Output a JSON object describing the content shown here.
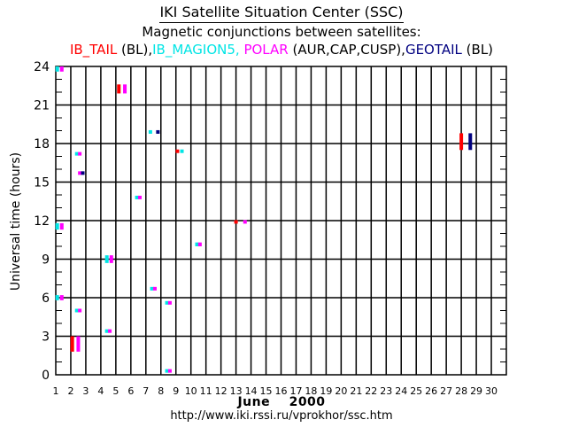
{
  "chart_data": {
    "type": "scatter",
    "title": "IKI Satellite Situation Center (SSC)",
    "subtitle": "Magnetic conjunctions between satellites:",
    "legend": [
      {
        "name": "IB_TAIL",
        "suffix": " (BL),",
        "color": "#ff0000"
      },
      {
        "name": "IB_MAGION5,",
        "suffix": " ",
        "color": "#00e5e5"
      },
      {
        "name": "POLAR",
        "suffix": " (AUR,CAP,CUSP),",
        "color": "#ff00ff"
      },
      {
        "name": "GEOTAIL",
        "suffix": " (BL)",
        "color": "#000080"
      }
    ],
    "xlabel": "June    2000",
    "ylabel": "Universal time (hours)",
    "footer": "http://www.iki.rssi.ru/vprokhor/ssc.htm",
    "xlim": [
      1,
      31
    ],
    "ylim": [
      0,
      24
    ],
    "x_ticks": [
      1,
      2,
      3,
      4,
      5,
      6,
      7,
      8,
      9,
      10,
      11,
      12,
      13,
      14,
      15,
      16,
      17,
      18,
      19,
      20,
      21,
      22,
      23,
      24,
      25,
      26,
      27,
      28,
      29,
      30
    ],
    "y_ticks": [
      0,
      3,
      6,
      9,
      12,
      15,
      18,
      21,
      24
    ],
    "grid": true,
    "series": [
      {
        "name": "IB_TAIL",
        "color": "#ff0000",
        "points": [
          {
            "day": 5.2,
            "h0": 21.9,
            "h1": 22.6
          },
          {
            "day": 9.1,
            "h0": 17.4,
            "h1": 17.4
          },
          {
            "day": 13.0,
            "h0": 11.9,
            "h1": 11.9
          },
          {
            "day": 2.1,
            "h0": 1.8,
            "h1": 3.0
          },
          {
            "day": 28.0,
            "h0": 17.5,
            "h1": 18.8
          }
        ]
      },
      {
        "name": "IB_MAGION5",
        "color": "#00e5e5",
        "points": [
          {
            "day": 1.1,
            "h0": 23.6,
            "h1": 24.0
          },
          {
            "day": 7.3,
            "h0": 18.9,
            "h1": 18.9
          },
          {
            "day": 9.4,
            "h0": 17.4,
            "h1": 17.4
          },
          {
            "day": 2.4,
            "h0": 17.2,
            "h1": 17.2
          },
          {
            "day": 6.4,
            "h0": 13.8,
            "h1": 13.8
          },
          {
            "day": 1.1,
            "h0": 11.3,
            "h1": 11.8
          },
          {
            "day": 10.4,
            "h0": 10.0,
            "h1": 10.3
          },
          {
            "day": 4.4,
            "h0": 8.7,
            "h1": 9.3
          },
          {
            "day": 7.4,
            "h0": 6.7,
            "h1": 6.7
          },
          {
            "day": 1.1,
            "h0": 5.8,
            "h1": 6.2
          },
          {
            "day": 8.4,
            "h0": 5.4,
            "h1": 5.6
          },
          {
            "day": 2.4,
            "h0": 4.8,
            "h1": 5.0
          },
          {
            "day": 4.4,
            "h0": 3.4,
            "h1": 3.4
          },
          {
            "day": 8.4,
            "h0": 0.2,
            "h1": 0.3
          }
        ]
      },
      {
        "name": "POLAR",
        "color": "#ff00ff",
        "points": [
          {
            "day": 1.4,
            "h0": 23.6,
            "h1": 24.0
          },
          {
            "day": 5.6,
            "h0": 21.9,
            "h1": 22.6
          },
          {
            "day": 2.6,
            "h0": 17.2,
            "h1": 17.2
          },
          {
            "day": 2.6,
            "h0": 15.7,
            "h1": 15.7
          },
          {
            "day": 6.6,
            "h0": 13.8,
            "h1": 13.8
          },
          {
            "day": 13.6,
            "h0": 11.9,
            "h1": 11.9
          },
          {
            "day": 1.4,
            "h0": 11.3,
            "h1": 11.8
          },
          {
            "day": 10.6,
            "h0": 10.0,
            "h1": 10.3
          },
          {
            "day": 4.7,
            "h0": 8.7,
            "h1": 9.3
          },
          {
            "day": 7.6,
            "h0": 6.7,
            "h1": 6.7
          },
          {
            "day": 1.4,
            "h0": 5.8,
            "h1": 6.2
          },
          {
            "day": 8.6,
            "h0": 5.4,
            "h1": 5.6
          },
          {
            "day": 2.6,
            "h0": 4.8,
            "h1": 5.0
          },
          {
            "day": 4.6,
            "h0": 3.4,
            "h1": 3.4
          },
          {
            "day": 2.5,
            "h0": 1.8,
            "h1": 3.0
          },
          {
            "day": 8.6,
            "h0": 0.2,
            "h1": 0.3
          }
        ]
      },
      {
        "name": "GEOTAIL",
        "color": "#000080",
        "points": [
          {
            "day": 7.8,
            "h0": 18.9,
            "h1": 18.9
          },
          {
            "day": 2.8,
            "h0": 15.7,
            "h1": 15.7
          },
          {
            "day": 28.6,
            "h0": 17.5,
            "h1": 18.8
          }
        ]
      }
    ]
  }
}
